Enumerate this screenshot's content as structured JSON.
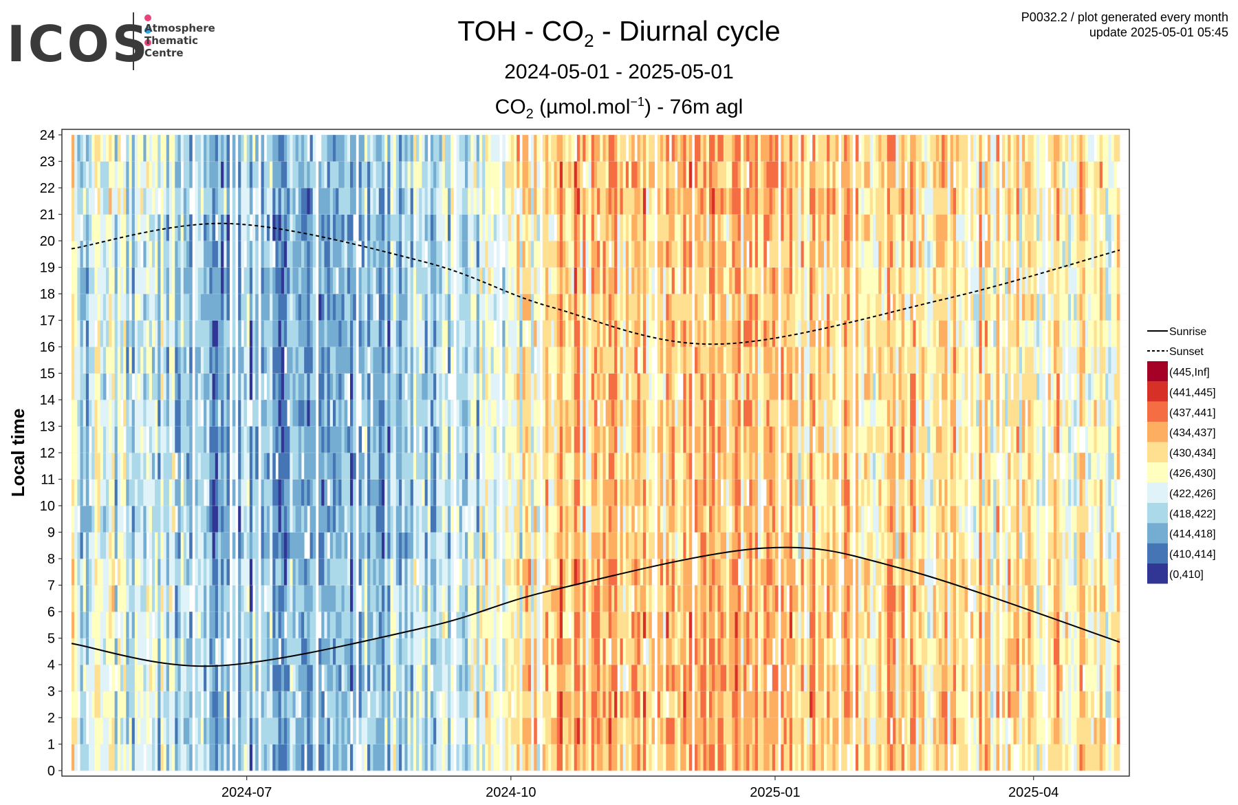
{
  "header": {
    "logo": "ICOS",
    "logo_sub": "Atmosphere\nThematic\nCentre",
    "logo_dot_colors": [
      "#e8447a",
      "#2aa6e6",
      "#e8447a"
    ],
    "title_prefix": "TOH - CO",
    "title_sub": "2",
    "title_suffix": " - Diurnal cycle",
    "date_range": "2024-05-01 - 2025-05-01",
    "subtitle_prefix": "CO",
    "subtitle_sub": "2",
    "subtitle_mid": " (µmol.mol",
    "subtitle_sup": "−1",
    "subtitle_suffix": ") - 76m agl",
    "meta_line1": "P0032.2 / plot generated every month",
    "meta_line2": "update  2025-05-01 05:45"
  },
  "chart_data": {
    "type": "heatmap",
    "ylabel": "Local time",
    "y_ticks": [
      0,
      1,
      2,
      3,
      4,
      5,
      6,
      7,
      8,
      9,
      10,
      11,
      12,
      13,
      14,
      15,
      16,
      17,
      18,
      19,
      20,
      21,
      22,
      23,
      24
    ],
    "x_ticks": [
      {
        "label": "2024-07",
        "date": "2024-07-01"
      },
      {
        "label": "2024-10",
        "date": "2024-10-01"
      },
      {
        "label": "2025-01",
        "date": "2025-01-01"
      },
      {
        "label": "2025-04",
        "date": "2025-04-01"
      }
    ],
    "x_range": [
      "2024-05-01",
      "2025-05-01"
    ],
    "y_range": [
      0,
      24
    ],
    "grid": true,
    "legend_position": "right",
    "lines": [
      {
        "name": "Sunrise",
        "style": "solid",
        "points": [
          [
            "2024-05-01",
            4.8
          ],
          [
            "2024-06-20",
            3.95
          ],
          [
            "2024-09-01",
            5.4
          ],
          [
            "2024-10-15",
            6.8
          ],
          [
            "2024-12-28",
            8.4
          ],
          [
            "2025-02-15",
            7.6
          ],
          [
            "2025-05-01",
            4.85
          ]
        ]
      },
      {
        "name": "Sunset",
        "style": "dashed",
        "points": [
          [
            "2024-05-01",
            19.7
          ],
          [
            "2024-06-25",
            20.65
          ],
          [
            "2024-09-01",
            19.2
          ],
          [
            "2024-10-15",
            17.5
          ],
          [
            "2024-12-12",
            16.1
          ],
          [
            "2025-03-01",
            17.8
          ],
          [
            "2025-05-01",
            19.65
          ]
        ]
      }
    ],
    "bins": [
      {
        "label": "(445,Inf]",
        "color": "#a50026"
      },
      {
        "label": "(441,445]",
        "color": "#d73027"
      },
      {
        "label": "(437,441]",
        "color": "#f46d43"
      },
      {
        "label": "(434,437]",
        "color": "#fdae61"
      },
      {
        "label": "(430,434]",
        "color": "#fee090"
      },
      {
        "label": "(426,430]",
        "color": "#ffffbf"
      },
      {
        "label": "(422,426]",
        "color": "#e0f3f8"
      },
      {
        "label": "(418,422]",
        "color": "#abd9e9"
      },
      {
        "label": "(414,418]",
        "color": "#74add1"
      },
      {
        "label": "(410,414]",
        "color": "#4575b4"
      },
      {
        "label": "(0,410]",
        "color": "#313695"
      }
    ],
    "seasonal_bin_profile": {
      "description_dates": [
        "2024-05-01",
        "2024-07-15",
        "2024-09-10",
        "2024-10-20",
        "2025-01-01",
        "2025-05-01"
      ],
      "typical_bin_index": [
        6,
        8,
        7,
        4,
        4,
        5
      ]
    }
  }
}
